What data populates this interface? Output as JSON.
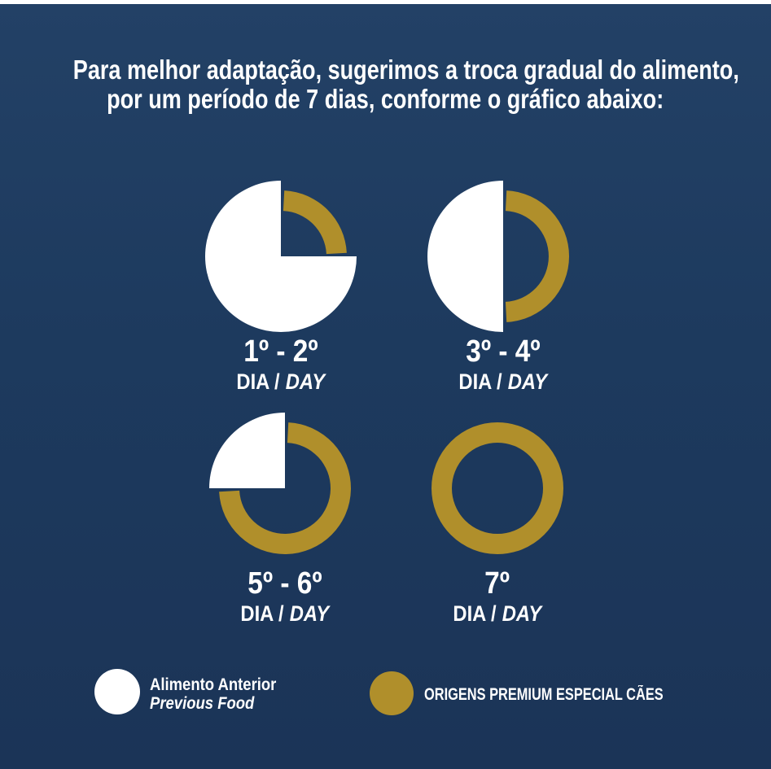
{
  "meta": {
    "background_navy": "#1d3a5e",
    "background_gradient_top": "#234166",
    "background_gradient_bottom": "#1b3457",
    "gold": "#b08f2b",
    "white": "#ffffff",
    "top_strip_color": "#ffffff"
  },
  "header": {
    "line1": "Para melhor adaptação, sugerimos a troca gradual do alimento,",
    "line2": "por um período de 7 dias, conforme o gráfico abaixo:"
  },
  "chart_data": {
    "type": "pie",
    "title": "Para melhor adaptação, sugerimos a troca gradual do alimento, por um período de 7 dias, conforme o gráfico abaixo:",
    "legend_position": "bottom",
    "geometry": {
      "white_pie_radius": 93,
      "gold_ring_outer_radius": 81,
      "gold_ring_inner_radius": 56,
      "gold_arc_end_gap_degrees": 3
    },
    "series": [
      {
        "label_days": "1º - 2º",
        "label_sub_pt": "DIA /",
        "label_sub_en": "DAY",
        "previous_food_pct": 75,
        "origens_premium_pct": 25
      },
      {
        "label_days": "3º - 4º",
        "label_sub_pt": "DIA /",
        "label_sub_en": "DAY",
        "previous_food_pct": 50,
        "origens_premium_pct": 50
      },
      {
        "label_days": "5º - 6º",
        "label_sub_pt": "DIA /",
        "label_sub_en": "DAY",
        "previous_food_pct": 25,
        "origens_premium_pct": 75
      },
      {
        "label_days": "7º",
        "label_sub_pt": "DIA /",
        "label_sub_en": "DAY",
        "previous_food_pct": 0,
        "origens_premium_pct": 100
      }
    ]
  },
  "legend": {
    "previous_food": {
      "label_pt": "Alimento Anterior",
      "label_en": "Previous Food",
      "color": "#ffffff"
    },
    "origens": {
      "label": "ORIGENS PREMIUM ESPECIAL CÃES",
      "color": "#b08f2b"
    }
  }
}
